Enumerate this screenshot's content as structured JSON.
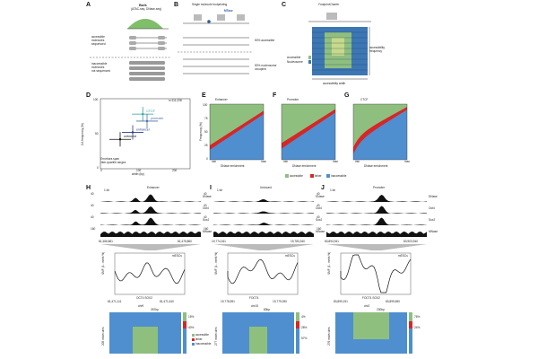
{
  "panel_labels": {
    "A": "A",
    "B": "B",
    "C": "C",
    "D": "D",
    "E": "E",
    "F": "F",
    "G": "G",
    "H": "H",
    "I": "I",
    "J": "J"
  },
  "panel_a": {
    "bulk_title": "Bulk",
    "bulk_sub": "(ATAC-seq, DNase-seq)",
    "accessible": "accessible\nmolecules\nsequenced",
    "inaccessible": "inaccessible\nmolecules\nnot sequenced"
  },
  "panel_b": {
    "title": "Single molecule footprinting",
    "mtase": "MTase",
    "pct_accessible": "50% accessible",
    "pct_occupied": "50% nucleosome\noccupied"
  },
  "panel_c": {
    "title": "FootprintCharter",
    "accessible": "Accessible",
    "nucleosome": "Nucleosome",
    "freq_label": "accessibility\nfrequency",
    "width_label": "accessibility width"
  },
  "panel_d": {
    "n": "n=111,228",
    "ylabel": "CA frequency (%)",
    "xlabel": "width (bp)",
    "note": "Errorbars span\ninter-quartile ranges",
    "y_ticks": [
      "100",
      "50",
      "0"
    ],
    "x_ticks": [
      "0",
      "100",
      "200"
    ],
    "groups": [
      {
        "name": "CTCF",
        "color": "#2aa198",
        "x": 118,
        "y": 78
      },
      {
        "name": "promoter",
        "color": "#4a6fa5",
        "x": 130,
        "y": 68
      },
      {
        "name": "enhancer",
        "color": "#2b3a8c",
        "x": 90,
        "y": 52
      },
      {
        "name": "unbound",
        "color": "#111111",
        "x": 55,
        "y": 42
      }
    ]
  },
  "panels_efg": {
    "titles": [
      "Enhancer",
      "Promoter",
      "CTCF"
    ],
    "ylabel": "Frequency (%)",
    "xlabel": "DNase enrichment",
    "x_min": "min",
    "x_max": "max",
    "y_ticks": [
      "100",
      "75",
      "50",
      "25",
      "0"
    ],
    "legend": [
      "accessible",
      "linker",
      "inaccessible"
    ],
    "colors": {
      "accessible": "#8fbf7f",
      "linker": "#d62728",
      "inaccessible": "#4f8fcf"
    }
  },
  "panel_h": {
    "title": "Enhancer",
    "scale": "1 kb",
    "tracks": [
      "DNase",
      "Oct4",
      "Sox2",
      "MNase"
    ],
    "y_top": [
      "40",
      "40",
      "40",
      "160"
    ],
    "y_bot": [
      "0",
      "0",
      "0",
      "0"
    ],
    "coord_left": "81,466,861",
    "coord_right": "81,475,860",
    "smf_ylabel": "SMF (1 - meth %)",
    "smf_legend": "mESCs",
    "motif_labels": [
      "OCT4",
      "SOX2"
    ],
    "coord2_left": "81,471,111",
    "coord2_right": "81,471,610",
    "chr": "chr9",
    "bp": "267bp",
    "mol_ylabel": "205 molecules",
    "pcts": [
      "15%",
      "40%"
    ],
    "legend": [
      "accessible",
      "linker",
      "inaccessible"
    ]
  },
  "panel_i": {
    "title": "Unbound",
    "scale": "1 kb",
    "tracks": [
      "DNase",
      "Oct4",
      "Sox2",
      "MNase"
    ],
    "y_top": [
      "40",
      "40",
      "40",
      "160"
    ],
    "y_bot": [
      "0",
      "0",
      "0",
      "0"
    ],
    "coord_left": "19,774,341",
    "coord_right": "19,783,340",
    "smf_legend": "mESCs",
    "smf_ylabel": "SMF (1 - meth %)",
    "motif_labels": [
      "FOCT4"
    ],
    "coord2_left": "19,778,591",
    "coord2_right": "19,779,090",
    "chr": "chr15",
    "bp": "83bp",
    "mol_ylabel": "277 molecules",
    "pcts": [
      "4%",
      "28%",
      "57%"
    ]
  },
  "panel_j": {
    "title": "Promoter",
    "scale": "1 kb",
    "tracks": [
      "DNase",
      "Oct4",
      "Sox2",
      "MNase"
    ],
    "y_top": [
      "40",
      "40",
      "40",
      "160"
    ],
    "y_bot": [
      "0",
      "0",
      "0",
      "0"
    ],
    "coord_left": "83,894,941",
    "coord_right": "83,903,940",
    "smf_legend": "mESCs",
    "smf_ylabel": "SMF (1 - meth %)",
    "motif_labels": [
      "FOCT4",
      "SOX2"
    ],
    "coord2_left": "83,899,191",
    "coord2_right": "83,899,690",
    "chr": "chr3",
    "bp": "230bp",
    "mol_ylabel": "276 molecules",
    "pcts": [
      "76%",
      "24%"
    ]
  }
}
